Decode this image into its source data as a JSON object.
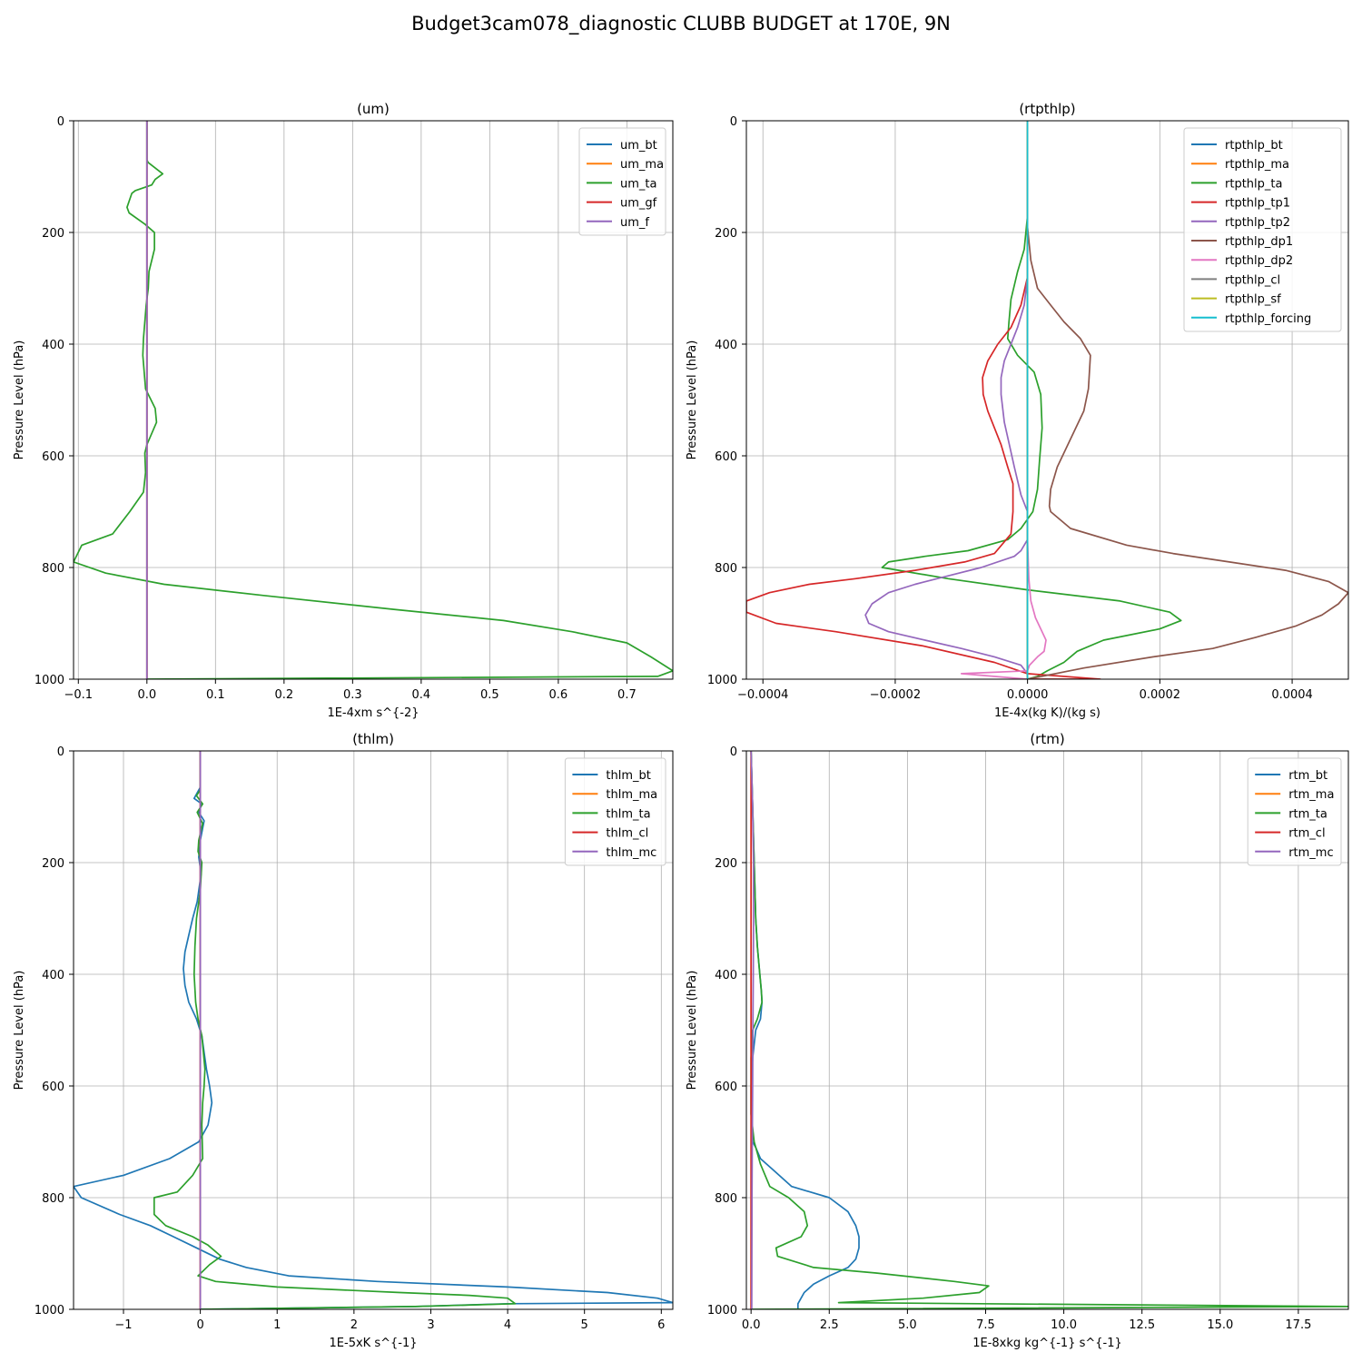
{
  "figure_title": "Budget3cam078_diagnostic CLUBB BUDGET at 170E, 9N",
  "chart_data": [
    {
      "type": "line",
      "title": "(um)",
      "xlabel": "1E-4xm s^{-2}",
      "ylabel": "Pressure Level (hPa)",
      "xlim": [
        -0.107,
        0.767
      ],
      "ylim": [
        1000,
        0
      ],
      "xticks": [
        -0.1,
        0.0,
        0.1,
        0.2,
        0.3,
        0.4,
        0.5,
        0.6,
        0.7
      ],
      "xtick_labels": [
        "−0.1",
        "0.0",
        "0.1",
        "0.2",
        "0.3",
        "0.4",
        "0.5",
        "0.6",
        "0.7"
      ],
      "yticks": [
        0,
        200,
        400,
        600,
        800,
        1000
      ],
      "ytick_labels": [
        "0",
        "200",
        "400",
        "600",
        "800",
        "1000"
      ],
      "grid": true,
      "legend_position": "top-right",
      "series": [
        {
          "name": "um_bt",
          "color": "#1f77b4",
          "x": [
            0,
            0
          ],
          "y": [
            0,
            1000
          ]
        },
        {
          "name": "um_ma",
          "color": "#ff7f0e",
          "x": [
            0,
            0
          ],
          "y": [
            0,
            1000
          ]
        },
        {
          "name": "um_ta",
          "color": "#2ca02c",
          "x": [
            0,
            0,
            0.002,
            0.023,
            0.012,
            0.007,
            -0.017,
            -0.022,
            -0.029,
            -0.026,
            -0.003,
            0.011,
            0.011,
            0.003,
            0.002,
            -0.001,
            -0.003,
            -0.005,
            -0.006,
            -0.004,
            -0.002,
            0.012,
            0.014,
            0.0,
            -0.003,
            -0.002,
            -0.005,
            -0.025,
            -0.05,
            -0.095,
            -0.107,
            -0.06,
            0.025,
            0.17,
            0.36,
            0.52,
            0.62,
            0.7,
            0.735,
            0.767,
            0.745,
            0.0
          ],
          "y": [
            0,
            70,
            75,
            95,
            105,
            115,
            125,
            130,
            155,
            165,
            185,
            200,
            230,
            270,
            300,
            330,
            360,
            390,
            420,
            450,
            480,
            515,
            540,
            580,
            595,
            630,
            665,
            700,
            740,
            760,
            790,
            810,
            830,
            850,
            875,
            895,
            915,
            935,
            960,
            985,
            995,
            1000
          ]
        },
        {
          "name": "um_gf",
          "color": "#d62728",
          "x": [
            0,
            0
          ],
          "y": [
            0,
            1000
          ]
        },
        {
          "name": "um_f",
          "color": "#9467bd",
          "x": [
            0,
            0
          ],
          "y": [
            0,
            1000
          ]
        }
      ]
    },
    {
      "type": "line",
      "title": "(rtpthlp)",
      "xlabel": "1E-4x(kg K)/(kg s)",
      "ylabel": "Pressure Level (hPa)",
      "xlim": [
        -0.000425,
        0.000485
      ],
      "ylim": [
        1000,
        0
      ],
      "xticks": [
        -0.0004,
        -0.0002,
        0.0,
        0.0002,
        0.0004
      ],
      "xtick_labels": [
        "−0.0004",
        "−0.0002",
        "0.0000",
        "0.0002",
        "0.0004"
      ],
      "yticks": [
        0,
        200,
        400,
        600,
        800,
        1000
      ],
      "ytick_labels": [
        "0",
        "200",
        "400",
        "600",
        "800",
        "1000"
      ],
      "grid": true,
      "legend_position": "top-right",
      "series": [
        {
          "name": "rtpthlp_bt",
          "color": "#1f77b4",
          "x": [
            0,
            0
          ],
          "y": [
            0,
            1000
          ]
        },
        {
          "name": "rtpthlp_ma",
          "color": "#ff7f0e",
          "x": [
            0,
            0
          ],
          "y": [
            0,
            1000
          ]
        },
        {
          "name": "rtpthlp_ta",
          "color": "#2ca02c",
          "x": [
            0,
            0,
            -5e-06,
            -1.5e-05,
            -2.5e-05,
            -2.8e-05,
            -3e-05,
            -1.5e-05,
            1e-05,
            2e-05,
            2.2e-05,
            1.8e-05,
            1.5e-05,
            8e-06,
            -1e-05,
            -3e-05,
            -9e-05,
            -0.000155,
            -0.00021,
            -0.00022,
            -0.00012,
            0.0,
            0.00014,
            0.000215,
            0.000232,
            0.0002,
            0.000115,
            7.5e-05,
            5.5e-05,
            3e-05,
            1.5e-05,
            0.0
          ],
          "y": [
            0,
            170,
            230,
            270,
            320,
            360,
            390,
            420,
            450,
            490,
            550,
            610,
            660,
            700,
            730,
            750,
            770,
            780,
            790,
            800,
            820,
            840,
            860,
            880,
            895,
            910,
            930,
            950,
            970,
            985,
            995,
            1000
          ]
        },
        {
          "name": "rtpthlp_tp1",
          "color": "#d62728",
          "x": [
            0,
            0,
            -1e-05,
            -2.5e-05,
            -4.5e-05,
            -6e-05,
            -6.8e-05,
            -6.7e-05,
            -6e-05,
            -4e-05,
            -3e-05,
            -2.2e-05,
            -2.2e-05,
            -2.5e-05,
            -5e-05,
            -9.5e-05,
            -0.00017,
            -0.00026,
            -0.00033,
            -0.00039,
            -0.000425,
            -0.000425,
            -0.00038,
            -0.00029,
            -0.00016,
            -5e-05,
            0.0,
            0.00011,
            0.0
          ],
          "y": [
            0,
            280,
            330,
            370,
            400,
            430,
            460,
            490,
            520,
            580,
            620,
            650,
            700,
            740,
            775,
            790,
            805,
            820,
            830,
            845,
            860,
            880,
            900,
            915,
            940,
            970,
            990,
            1000,
            1000
          ]
        },
        {
          "name": "rtpthlp_tp2",
          "color": "#9467bd",
          "x": [
            0,
            0,
            -5e-06,
            -1.5e-05,
            -2.5e-05,
            -3.5e-05,
            -4e-05,
            -4e-05,
            -3.5e-05,
            -2e-05,
            -1e-05,
            0.0,
            0.0,
            -1e-05,
            -2e-05,
            -7e-05,
            -0.00012,
            -0.00017,
            -0.00021,
            -0.000235,
            -0.000245,
            -0.00024,
            -0.00021,
            -0.000155,
            -0.0001,
            -5e-05,
            -1e-05,
            0.0,
            0.0
          ],
          "y": [
            0,
            280,
            330,
            370,
            400,
            430,
            460,
            490,
            540,
            620,
            670,
            700,
            750,
            770,
            780,
            800,
            815,
            830,
            845,
            865,
            885,
            900,
            915,
            930,
            945,
            960,
            975,
            990,
            1000
          ]
        },
        {
          "name": "rtpthlp_dp1",
          "color": "#8c564b",
          "x": [
            0,
            0,
            5e-06,
            1.5e-05,
            3.5e-05,
            5.5e-05,
            8e-05,
            9.5e-05,
            9.2e-05,
            8.5e-05,
            6.5e-05,
            4.5e-05,
            3.5e-05,
            3.3e-05,
            3.5e-05,
            6.5e-05,
            0.00015,
            0.00022,
            0.000305,
            0.00039,
            0.000455,
            0.000485,
            0.00047,
            0.000445,
            0.000405,
            0.000345,
            0.00028,
            0.00019,
            8.5e-05,
            0.0
          ],
          "y": [
            0,
            190,
            250,
            300,
            330,
            360,
            390,
            420,
            480,
            520,
            570,
            620,
            660,
            690,
            700,
            730,
            760,
            775,
            790,
            805,
            825,
            845,
            865,
            885,
            905,
            925,
            945,
            960,
            980,
            1000
          ]
        },
        {
          "name": "rtpthlp_dp2",
          "color": "#e377c2",
          "x": [
            0,
            0,
            2e-06,
            5e-06,
            1.2e-05,
            2e-05,
            2.8e-05,
            2.5e-05,
            1.5e-05,
            3e-06,
            0.0,
            -0.0001,
            0.0
          ],
          "y": [
            0,
            750,
            820,
            860,
            890,
            910,
            930,
            950,
            960,
            975,
            985,
            990,
            1000
          ]
        },
        {
          "name": "rtpthlp_cl",
          "color": "#7f7f7f",
          "x": [
            0,
            0
          ],
          "y": [
            0,
            1000
          ]
        },
        {
          "name": "rtpthlp_sf",
          "color": "#bcbd22",
          "x": [
            0,
            0
          ],
          "y": [
            0,
            1000
          ]
        },
        {
          "name": "rtpthlp_forcing",
          "color": "#17becf",
          "x": [
            0,
            0
          ],
          "y": [
            0,
            1000
          ]
        }
      ]
    },
    {
      "type": "line",
      "title": "(thlm)",
      "xlabel": "1E-5xK s^{-1}",
      "ylabel": "Pressure Level (hPa)",
      "xlim": [
        -1.65,
        6.15
      ],
      "ylim": [
        1000,
        0
      ],
      "xticks": [
        -1,
        0,
        1,
        2,
        3,
        4,
        5,
        6
      ],
      "xtick_labels": [
        "−1",
        "0",
        "1",
        "2",
        "3",
        "4",
        "5",
        "6"
      ],
      "yticks": [
        0,
        200,
        400,
        600,
        800,
        1000
      ],
      "ytick_labels": [
        "0",
        "200",
        "400",
        "600",
        "800",
        "1000"
      ],
      "grid": true,
      "legend_position": "top-right",
      "series": [
        {
          "name": "thlm_bt",
          "color": "#1f77b4",
          "x": [
            0,
            0,
            -0.08,
            0.02,
            -0.02,
            0.05,
            0.0,
            -0.02,
            0.01,
            -0.04,
            -0.1,
            -0.15,
            -0.2,
            -0.22,
            -0.2,
            -0.15,
            -0.05,
            0.02,
            0.05,
            0.08,
            0.12,
            0.15,
            0.1,
            -0.02,
            -0.4,
            -1.0,
            -1.65,
            -1.55,
            -1.05,
            -0.65,
            -0.35,
            -0.05,
            0.25,
            0.6,
            1.15,
            2.3,
            4.0,
            5.3,
            5.95,
            6.15,
            4.0,
            2.8,
            0.0
          ],
          "y": [
            0,
            65,
            85,
            95,
            110,
            125,
            160,
            190,
            220,
            270,
            300,
            330,
            360,
            390,
            420,
            450,
            480,
            510,
            540,
            570,
            600,
            630,
            670,
            700,
            730,
            760,
            780,
            800,
            830,
            850,
            870,
            890,
            910,
            925,
            940,
            950,
            960,
            970,
            980,
            988,
            990,
            995,
            1000
          ]
        },
        {
          "name": "thlm_ma",
          "color": "#ff7f0e",
          "x": [
            0,
            0
          ],
          "y": [
            0,
            1000
          ]
        },
        {
          "name": "thlm_ta",
          "color": "#2ca02c",
          "x": [
            0,
            0,
            -0.05,
            0.03,
            -0.04,
            0.03,
            -0.02,
            -0.03,
            0.02,
            0.0,
            -0.05,
            -0.07,
            -0.08,
            -0.06,
            -0.03,
            0.02,
            0.04,
            0.06,
            0.05,
            0.03,
            0.02,
            0.03,
            -0.1,
            -0.3,
            -0.6,
            -0.6,
            -0.45,
            -0.1,
            0.1,
            0.27,
            0.12,
            -0.03,
            0.2,
            1.0,
            2.6,
            3.5,
            4.0,
            4.1,
            2.8,
            0.0
          ],
          "y": [
            0,
            70,
            80,
            95,
            110,
            130,
            160,
            180,
            200,
            250,
            300,
            350,
            400,
            450,
            480,
            510,
            540,
            570,
            600,
            630,
            670,
            730,
            760,
            790,
            800,
            830,
            850,
            870,
            885,
            905,
            920,
            940,
            950,
            960,
            970,
            975,
            980,
            990,
            995,
            1000
          ]
        },
        {
          "name": "thlm_cl",
          "color": "#d62728",
          "x": [
            0,
            0
          ],
          "y": [
            0,
            1000
          ]
        },
        {
          "name": "thlm_mc",
          "color": "#9467bd",
          "x": [
            0,
            0
          ],
          "y": [
            0,
            1000
          ]
        }
      ]
    },
    {
      "type": "line",
      "title": "(rtm)",
      "xlabel": "1E-8xkg kg^{-1} s^{-1}",
      "ylabel": "Pressure Level (hPa)",
      "xlim": [
        -0.15,
        19.1
      ],
      "ylim": [
        1000,
        0
      ],
      "xticks": [
        0.0,
        2.5,
        5.0,
        7.5,
        10.0,
        12.5,
        15.0,
        17.5
      ],
      "xtick_labels": [
        "0.0",
        "2.5",
        "5.0",
        "7.5",
        "10.0",
        "12.5",
        "15.0",
        "17.5"
      ],
      "yticks": [
        0,
        200,
        400,
        600,
        800,
        1000
      ],
      "ytick_labels": [
        "0",
        "200",
        "400",
        "600",
        "800",
        "1000"
      ],
      "grid": true,
      "legend_position": "top-right",
      "series": [
        {
          "name": "rtm_bt",
          "color": "#1f77b4",
          "x": [
            0,
            0.05,
            0.1,
            0.15,
            0.2,
            0.28,
            0.33,
            0.35,
            0.3,
            0.15,
            0.05,
            0.0,
            0.0,
            0.05,
            0.15,
            0.3,
            0.7,
            1.3,
            2.5,
            3.1,
            3.35,
            3.45,
            3.45,
            3.35,
            3.1,
            2.5,
            2.0,
            1.7,
            1.5,
            1.5
          ],
          "y": [
            0,
            100,
            200,
            300,
            350,
            400,
            430,
            450,
            480,
            500,
            550,
            600,
            650,
            700,
            710,
            730,
            750,
            780,
            800,
            825,
            850,
            870,
            890,
            910,
            925,
            940,
            955,
            970,
            990,
            1000
          ]
        },
        {
          "name": "rtm_ma",
          "color": "#ff7f0e",
          "x": [
            0,
            0
          ],
          "y": [
            0,
            1000
          ]
        },
        {
          "name": "rtm_ta",
          "color": "#2ca02c",
          "x": [
            0,
            0.05,
            0.1,
            0.15,
            0.2,
            0.28,
            0.33,
            0.35,
            0.2,
            0.05,
            0.0,
            0.0,
            0.0,
            0.1,
            0.3,
            0.6,
            1.2,
            1.7,
            1.8,
            1.6,
            0.8,
            0.85,
            2.0,
            4.0,
            6.5,
            7.6,
            7.3,
            5.5,
            2.8,
            19.1,
            0.0
          ],
          "y": [
            0,
            100,
            200,
            300,
            350,
            400,
            430,
            450,
            480,
            500,
            550,
            600,
            650,
            700,
            740,
            780,
            800,
            825,
            850,
            870,
            890,
            905,
            925,
            935,
            950,
            958,
            970,
            980,
            988,
            995,
            1000
          ]
        },
        {
          "name": "rtm_cl",
          "color": "#d62728",
          "x": [
            0,
            0
          ],
          "y": [
            0,
            1000
          ]
        },
        {
          "name": "rtm_mc",
          "color": "#9467bd",
          "x": [
            0,
            0.05,
            0.08,
            0.08,
            0.07,
            0.06,
            0.05,
            0.04,
            0.03,
            0.02
          ],
          "y": [
            0,
            100,
            200,
            300,
            400,
            500,
            600,
            700,
            800,
            1000
          ]
        }
      ]
    }
  ]
}
